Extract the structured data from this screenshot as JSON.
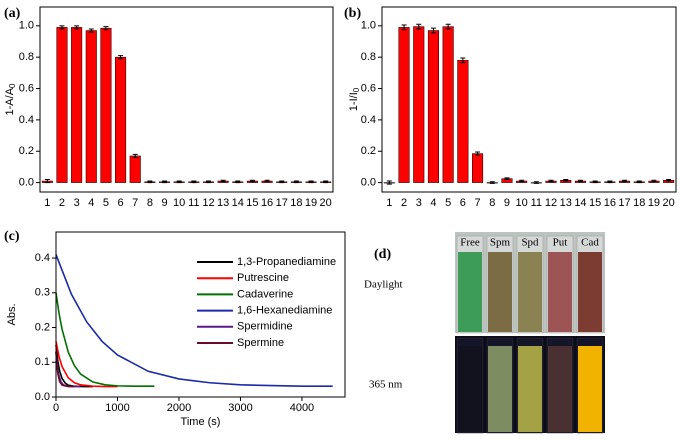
{
  "chart_data": [
    {
      "type": "bar",
      "label": "(a)",
      "ylabel": {
        "main": "1-A/A",
        "sub": "0"
      },
      "categories": [
        "1",
        "2",
        "3",
        "4",
        "5",
        "6",
        "7",
        "8",
        "9",
        "10",
        "11",
        "12",
        "13",
        "14",
        "15",
        "16",
        "17",
        "18",
        "19",
        "20"
      ],
      "values": [
        0.01,
        0.99,
        0.99,
        0.97,
        0.985,
        0.8,
        0.17,
        0.005,
        0.005,
        0.005,
        0.005,
        0.005,
        0.01,
        0.005,
        0.01,
        0.01,
        0.005,
        0.005,
        0.005,
        0.005
      ],
      "errors": [
        0.01,
        0.01,
        0.01,
        0.01,
        0.01,
        0.01,
        0.01,
        0.005,
        0.005,
        0.005,
        0.005,
        0.005,
        0.005,
        0.005,
        0.005,
        0.005,
        0.005,
        0.005,
        0.005,
        0.005
      ],
      "color": "#ff0000",
      "ylim": [
        -0.06,
        1.12
      ],
      "yticks": [
        {
          "value": 0,
          "label": "0.0"
        },
        0.2,
        0.4,
        0.6,
        0.8,
        {
          "value": 1,
          "label": "1.0"
        }
      ]
    },
    {
      "type": "bar",
      "label": "(b)",
      "ylabel": {
        "main": "1-I/I",
        "sub": "0"
      },
      "categories": [
        "1",
        "2",
        "3",
        "4",
        "5",
        "6",
        "7",
        "8",
        "9",
        "10",
        "11",
        "12",
        "13",
        "14",
        "15",
        "16",
        "17",
        "18",
        "19",
        "20"
      ],
      "values": [
        0.0,
        0.99,
        0.995,
        0.97,
        0.995,
        0.78,
        0.185,
        0.0,
        0.025,
        0.01,
        0.0,
        0.01,
        0.015,
        0.01,
        0.005,
        0.005,
        0.01,
        0.005,
        0.01,
        0.015
      ],
      "errors": [
        0.01,
        0.015,
        0.015,
        0.015,
        0.015,
        0.015,
        0.01,
        0.005,
        0.005,
        0.005,
        0.005,
        0.005,
        0.005,
        0.005,
        0.005,
        0.005,
        0.005,
        0.005,
        0.005,
        0.005
      ],
      "color": "#ff0000",
      "ylim": [
        -0.06,
        1.12
      ],
      "yticks": [
        {
          "value": 0,
          "label": "0.0"
        },
        0.2,
        0.4,
        0.6,
        0.8,
        {
          "value": 1,
          "label": "1.0"
        }
      ]
    },
    {
      "type": "line",
      "label": "(c)",
      "ylabel": {
        "main": "Abs."
      },
      "xlabel": "Time (s)",
      "xlim": [
        0,
        4700
      ],
      "xticks": [
        0,
        1000,
        2000,
        3000,
        4000
      ],
      "ylim": [
        0,
        0.475
      ],
      "yticks": [
        {
          "value": 0,
          "label": "0.0"
        },
        0.1,
        0.2,
        0.3,
        0.4
      ],
      "legend": "upper right",
      "series": [
        {
          "name": "1,3-Propanediamine",
          "color": "#000000",
          "x": [
            0,
            30,
            60,
            100,
            150,
            200,
            300,
            450,
            600
          ],
          "values": [
            0.15,
            0.103,
            0.074,
            0.053,
            0.04,
            0.034,
            0.031,
            0.03,
            0.03
          ]
        },
        {
          "name": "Putrescine",
          "color": "#ff0000",
          "x": [
            0,
            50,
            100,
            200,
            300,
            400,
            600,
            800,
            1000
          ],
          "values": [
            0.16,
            0.116,
            0.087,
            0.055,
            0.041,
            0.035,
            0.031,
            0.03,
            0.03
          ]
        },
        {
          "name": "Cadaverine",
          "color": "#007000",
          "x": [
            0,
            50,
            100,
            200,
            300,
            400,
            600,
            800,
            1000,
            1300,
            1600
          ],
          "values": [
            0.3,
            0.24,
            0.194,
            0.129,
            0.09,
            0.066,
            0.043,
            0.035,
            0.032,
            0.031,
            0.031
          ]
        },
        {
          "name": "1,6-Hexanediamine",
          "color": "#1a2aa8",
          "x": [
            0,
            250,
            500,
            750,
            1000,
            1500,
            2000,
            2500,
            3000,
            3500,
            4000,
            4500
          ],
          "values": [
            0.41,
            0.296,
            0.216,
            0.16,
            0.121,
            0.074,
            0.052,
            0.041,
            0.035,
            0.033,
            0.031,
            0.031
          ]
        },
        {
          "name": "Spermidine",
          "color": "#5a1a8a",
          "x": [
            0,
            20,
            40,
            80,
            120,
            200,
            300,
            400
          ],
          "values": [
            0.13,
            0.091,
            0.067,
            0.044,
            0.035,
            0.031,
            0.03,
            0.03
          ]
        },
        {
          "name": "Spermine",
          "color": "#6a0a2a",
          "x": [
            0,
            15,
            30,
            60,
            100,
            200,
            300
          ],
          "values": [
            0.13,
            0.091,
            0.067,
            0.044,
            0.034,
            0.03,
            0.03
          ]
        }
      ]
    }
  ],
  "photo": {
    "label": "(d)",
    "rows": [
      "Daylight",
      "365 nm"
    ],
    "vials": [
      {
        "name": "Free",
        "daylight": "#3c9c58",
        "uv": "#12121e"
      },
      {
        "name": "Spm",
        "daylight": "#7c6c44",
        "uv": "#7e8c62"
      },
      {
        "name": "Spd",
        "daylight": "#8a8252",
        "uv": "#a4a244"
      },
      {
        "name": "Put",
        "daylight": "#9c5454",
        "uv": "#4a3030"
      },
      {
        "name": "Cad",
        "daylight": "#7c3c32",
        "uv": "#f2b200"
      }
    ]
  }
}
